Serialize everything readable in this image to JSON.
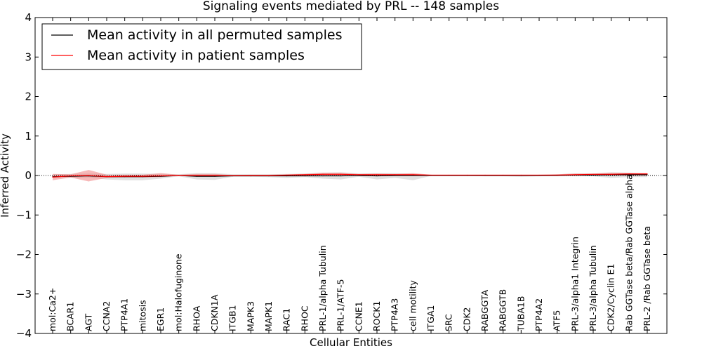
{
  "chart_data": {
    "type": "line",
    "title": "Signaling events mediated by PRL -- 148 samples",
    "xlabel": "Cellular Entities",
    "ylabel": "Inferred Activity",
    "ylim": [
      -4,
      4
    ],
    "yticks": [
      -4,
      -3,
      -2,
      -1,
      0,
      1,
      2,
      3,
      4
    ],
    "ytick_labels": [
      "−4",
      "−3",
      "−2",
      "−1",
      "0",
      "1",
      "2",
      "3",
      "4"
    ],
    "grid": false,
    "legend_position": "top-left",
    "categories": [
      "mol:Ca2+",
      "BCAR1",
      "AGT",
      "CCNA2",
      "PTP4A1",
      "mitosis",
      "EGR1",
      "mol:Halofuginone",
      "RHOA",
      "CDKN1A",
      "ITGB1",
      "MAPK3",
      "MAPK1",
      "RAC1",
      "RHOC",
      "PRL-1/alpha Tubulin",
      "PRL-1/ATF-5",
      "CCNE1",
      "ROCK1",
      "PTP4A3",
      "cell motility",
      "ITGA1",
      "SRC",
      "CDK2",
      "RABGGTA",
      "RABGGTB",
      "TUBA1B",
      "PTP4A2",
      "ATF5",
      "PRL-3/alpha1 Integrin",
      "PRL-3/alpha Tubulin",
      "CDK2/Cyclin E1",
      "Rab GGTase beta/Rab GGTase alpha",
      "PRL-2 /Rab GGTase beta"
    ],
    "series": [
      {
        "name": "Mean activity in all permuted samples",
        "color": "#000000",
        "values": [
          -0.03,
          -0.02,
          -0.01,
          -0.03,
          -0.03,
          -0.03,
          -0.02,
          0.0,
          -0.02,
          -0.02,
          -0.01,
          -0.01,
          -0.01,
          -0.01,
          -0.01,
          -0.01,
          -0.01,
          0.0,
          -0.01,
          0.0,
          0.0,
          0.0,
          0.0,
          0.0,
          0.0,
          0.0,
          0.0,
          0.0,
          0.0,
          0.01,
          0.01,
          0.02,
          0.02,
          0.02
        ],
        "band_lower": [
          -0.06,
          -0.06,
          -0.05,
          -0.1,
          -0.12,
          -0.12,
          -0.08,
          -0.02,
          -0.1,
          -0.11,
          -0.03,
          -0.03,
          -0.04,
          -0.06,
          -0.04,
          -0.08,
          -0.1,
          -0.03,
          -0.1,
          -0.06,
          -0.12,
          -0.01,
          -0.01,
          -0.01,
          -0.02,
          -0.02,
          -0.03,
          -0.02,
          -0.01,
          -0.02,
          -0.02,
          -0.06,
          -0.04,
          -0.04
        ],
        "band_upper": [
          0.03,
          0.04,
          0.05,
          0.04,
          0.05,
          0.05,
          0.04,
          0.03,
          0.06,
          0.06,
          0.03,
          0.03,
          0.03,
          0.04,
          0.05,
          0.07,
          0.08,
          0.05,
          0.06,
          0.06,
          0.04,
          0.02,
          0.02,
          0.02,
          0.02,
          0.02,
          0.02,
          0.02,
          0.03,
          0.05,
          0.05,
          0.08,
          0.07,
          0.05
        ]
      },
      {
        "name": "Mean activity in patient samples",
        "color": "#ff0000",
        "values": [
          -0.04,
          -0.01,
          0.0,
          -0.03,
          -0.02,
          -0.02,
          -0.01,
          0.0,
          0.0,
          0.0,
          0.0,
          0.0,
          0.0,
          0.01,
          0.02,
          0.03,
          0.03,
          0.02,
          0.02,
          0.02,
          0.02,
          0.01,
          0.01,
          0.01,
          0.01,
          0.01,
          0.01,
          0.01,
          0.01,
          0.02,
          0.03,
          0.03,
          0.04,
          0.04
        ],
        "band_lower": [
          -0.12,
          -0.05,
          -0.15,
          -0.06,
          -0.05,
          -0.05,
          -0.04,
          -0.01,
          -0.03,
          -0.03,
          -0.01,
          -0.01,
          -0.01,
          -0.01,
          0.0,
          0.0,
          0.0,
          -0.01,
          -0.01,
          -0.01,
          -0.01,
          0.0,
          0.0,
          0.0,
          0.0,
          0.0,
          0.0,
          0.0,
          0.0,
          0.0,
          0.0,
          0.0,
          0.0,
          0.0
        ],
        "band_upper": [
          0.04,
          0.03,
          0.14,
          0.02,
          0.02,
          0.02,
          0.06,
          0.02,
          0.04,
          0.04,
          0.01,
          0.02,
          0.02,
          0.03,
          0.04,
          0.07,
          0.07,
          0.04,
          0.05,
          0.04,
          0.06,
          0.02,
          0.02,
          0.02,
          0.02,
          0.02,
          0.02,
          0.02,
          0.03,
          0.05,
          0.05,
          0.07,
          0.06,
          0.06
        ]
      }
    ],
    "reference_line": {
      "value": 0,
      "style": "dotted"
    }
  }
}
